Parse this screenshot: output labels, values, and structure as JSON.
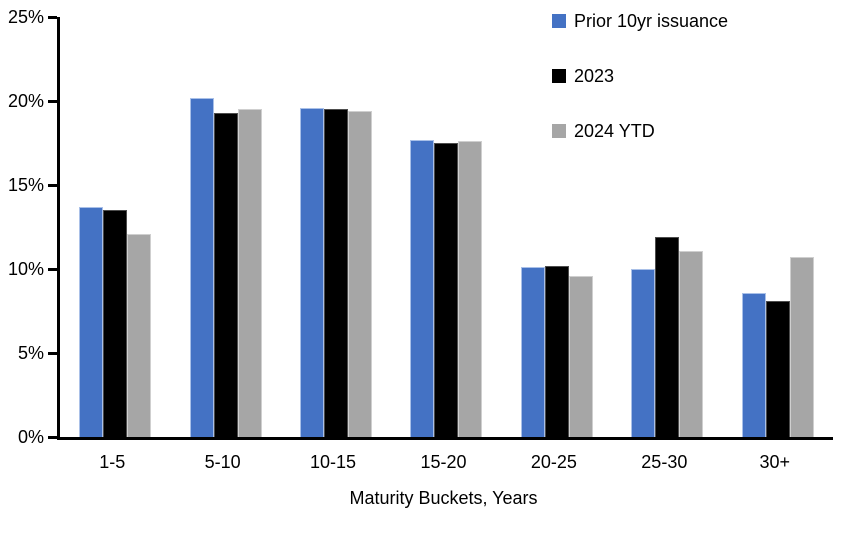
{
  "chart_data": {
    "type": "bar",
    "title": "",
    "xlabel": "Maturity Buckets, Years",
    "ylabel": "",
    "ylim": [
      0,
      25
    ],
    "grid": false,
    "legend_position": "top-right",
    "background_color": "#FFFFFF",
    "axis_color": "#000000",
    "categories": [
      "1-5",
      "5-10",
      "10-15",
      "15-20",
      "20-25",
      "25-30",
      "30+"
    ],
    "y_ticks": [
      {
        "value": 25,
        "label": "25%"
      },
      {
        "value": 20,
        "label": "20%"
      },
      {
        "value": 15,
        "label": "15%"
      },
      {
        "value": 10,
        "label": "10%"
      },
      {
        "value": 5,
        "label": "5%"
      },
      {
        "value": 0,
        "label": "0%"
      }
    ],
    "series": [
      {
        "name": "Prior 10yr issuance",
        "color": "#4472C4",
        "border_color": "#A9C0E8",
        "values": [
          13.7,
          20.2,
          19.6,
          17.7,
          10.1,
          10.0,
          8.6
        ]
      },
      {
        "name": "2023",
        "color": "#000000",
        "border_color": "#4D4D4D",
        "values": [
          13.5,
          19.3,
          19.5,
          17.5,
          10.2,
          11.9,
          8.1
        ]
      },
      {
        "name": "2024 YTD",
        "color": "#A6A6A6",
        "border_color": "#CFCFCF",
        "values": [
          12.1,
          19.5,
          19.4,
          17.6,
          9.6,
          11.1,
          10.7
        ]
      }
    ]
  }
}
